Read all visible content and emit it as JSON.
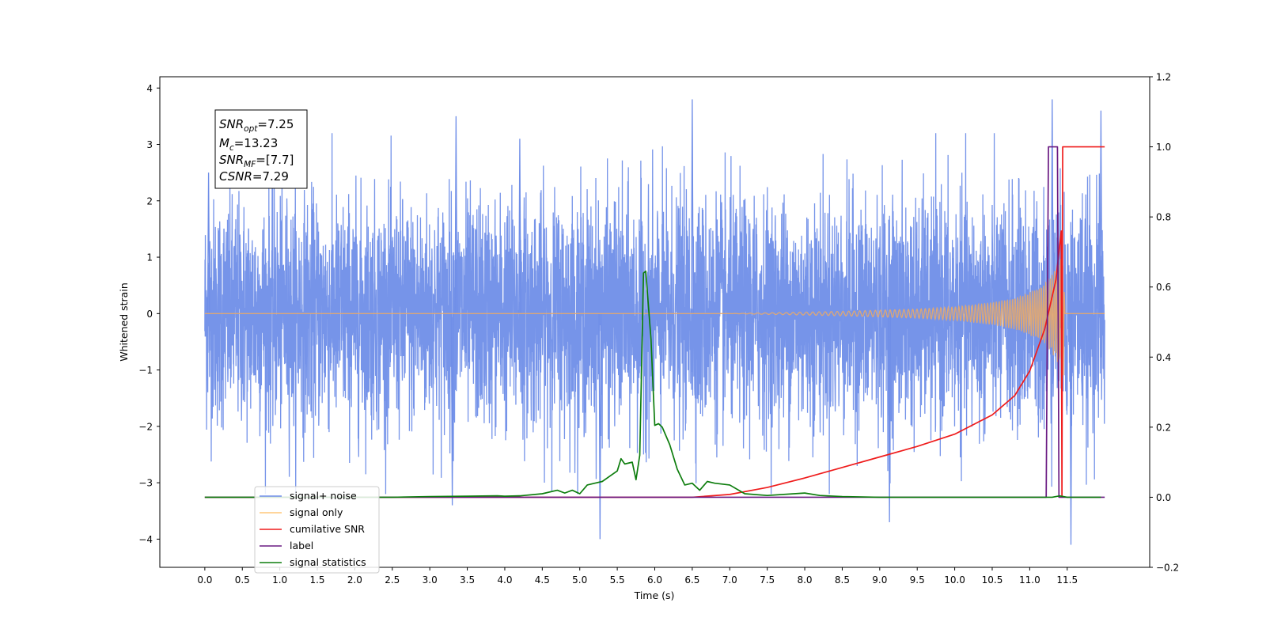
{
  "chart_data": {
    "type": "line",
    "xlabel": "Time (s)",
    "ylabel": "Whitened strain",
    "xlim": [
      -0.6,
      12.6
    ],
    "ylim": [
      -4.5,
      4.2
    ],
    "y2lim": [
      -0.2,
      1.2
    ],
    "x_ticks": [
      "0.0",
      "0.5",
      "1.0",
      "1.5",
      "2.0",
      "2.5",
      "3.0",
      "3.5",
      "4.0",
      "4.5",
      "5.0",
      "5.5",
      "6.0",
      "6.5",
      "7.0",
      "7.5",
      "8.0",
      "8.5",
      "9.0",
      "9.5",
      "10.0",
      "10.5",
      "11.0",
      "11.5"
    ],
    "y_ticks": [
      "4",
      "3",
      "2",
      "1",
      "0",
      "−1",
      "−2",
      "−3",
      "−4"
    ],
    "y2_ticks": [
      "1.2",
      "1.0",
      "0.8",
      "0.6",
      "0.4",
      "0.2",
      "0.0",
      "−0.2"
    ],
    "grid": false,
    "legend_position": "lower-left",
    "annotation": {
      "lines": [
        {
          "base": "SNR",
          "sub": "opt",
          "value": "=7.25"
        },
        {
          "base": "M",
          "sub": "c",
          "value": "=13.23"
        },
        {
          "base": "SNR",
          "sub": "MF",
          "value": "=[7.7]"
        },
        {
          "base": "CSNR",
          "sub": "",
          "value": "=7.29"
        }
      ]
    },
    "series": [
      {
        "name": "signal+ noise",
        "axis": "left",
        "color": "#6f8ee8",
        "description": "whitened noise plus signal, roughly unit variance, t from 0.0 to 12.0 s",
        "x_range": [
          0.0,
          12.0
        ],
        "std": 1.0,
        "peaks": [
          [
            3.35,
            3.5
          ],
          [
            6.5,
            3.8
          ],
          [
            11.3,
            3.8
          ],
          [
            11.95,
            3.6
          ],
          [
            3.3,
            -3.4
          ],
          [
            5.27,
            -4.0
          ],
          [
            9.13,
            -3.7
          ],
          [
            11.55,
            -4.1
          ],
          [
            0.05,
            2.5
          ],
          [
            4.2,
            3.1
          ]
        ]
      },
      {
        "name": "signal only",
        "axis": "left",
        "color": "#e8a86a",
        "description": "chirp waveform, amplitude grows until merger near 11.45 s",
        "x": [
          0.0,
          7.0,
          8.5,
          9.5,
          10.0,
          10.5,
          10.8,
          11.0,
          11.2,
          11.35,
          11.45,
          11.47,
          12.0
        ],
        "envelope": [
          0.0,
          0.0,
          0.04,
          0.08,
          0.12,
          0.2,
          0.28,
          0.38,
          0.55,
          0.8,
          1.1,
          0.0,
          0.0
        ]
      },
      {
        "name": "cumilative SNR",
        "axis": "right",
        "color": "#ef1c1c",
        "x": [
          0.0,
          6.5,
          7.0,
          7.5,
          8.0,
          8.5,
          9.0,
          9.5,
          10.0,
          10.5,
          10.8,
          11.0,
          11.2,
          11.35,
          11.42,
          11.43,
          11.44,
          12.0
        ],
        "values": [
          0.0,
          0.0,
          0.008,
          0.028,
          0.055,
          0.085,
          0.115,
          0.145,
          0.18,
          0.235,
          0.29,
          0.36,
          0.48,
          0.62,
          0.76,
          0.0,
          1.0,
          1.0
        ]
      },
      {
        "name": "label",
        "axis": "right",
        "color": "#6a1a82",
        "x": [
          0.0,
          11.22,
          11.25,
          11.31,
          11.37,
          11.39,
          12.0
        ],
        "values": [
          0.0,
          0.0,
          1.0,
          1.0,
          1.0,
          0.0,
          0.0
        ]
      },
      {
        "name": "signal statistics",
        "axis": "right",
        "color": "#0d7d0d",
        "x": [
          0.0,
          2.5,
          3.0,
          3.5,
          3.9,
          4.0,
          4.2,
          4.5,
          4.7,
          4.8,
          4.9,
          5.0,
          5.1,
          5.2,
          5.3,
          5.4,
          5.5,
          5.55,
          5.6,
          5.7,
          5.75,
          5.8,
          5.85,
          5.88,
          5.95,
          6.0,
          6.05,
          6.1,
          6.2,
          6.3,
          6.4,
          6.5,
          6.6,
          6.7,
          6.8,
          7.0,
          7.2,
          7.5,
          8.0,
          8.2,
          8.5,
          9.0,
          10.0,
          11.0,
          11.3,
          11.4,
          11.5,
          11.95
        ],
        "values": [
          0.0,
          0.0,
          0.002,
          0.003,
          0.004,
          0.003,
          0.004,
          0.01,
          0.02,
          0.012,
          0.02,
          0.01,
          0.035,
          0.04,
          0.045,
          0.06,
          0.075,
          0.11,
          0.095,
          0.1,
          0.05,
          0.12,
          0.64,
          0.645,
          0.45,
          0.205,
          0.21,
          0.2,
          0.15,
          0.08,
          0.035,
          0.04,
          0.02,
          0.045,
          0.04,
          0.035,
          0.01,
          0.005,
          0.012,
          0.005,
          0.002,
          0.0,
          0.0,
          0.0,
          0.0,
          0.004,
          0.0,
          0.0
        ]
      }
    ]
  }
}
